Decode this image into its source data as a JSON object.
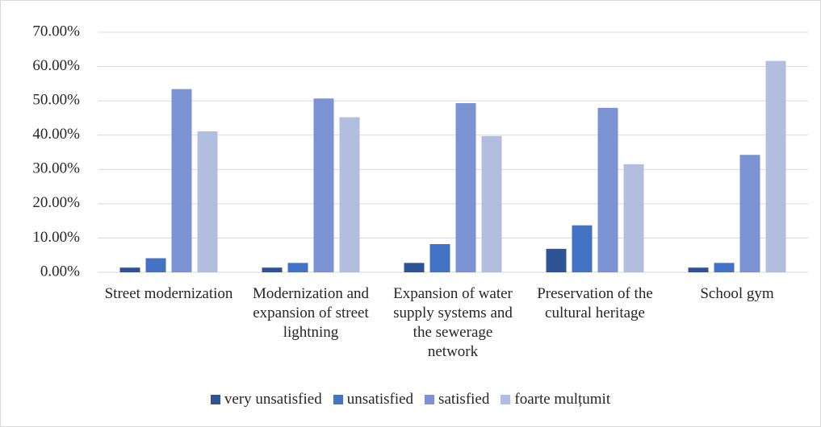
{
  "chart_data": {
    "type": "bar",
    "categories": [
      "Street modernization",
      "Modernization and expansion of street lightning",
      "Expansion of water supply systems and the sewerage network",
      "Preservation of the cultural heritage",
      "School gym"
    ],
    "series": [
      {
        "name": "very unsatisfied",
        "color": "#2f5496",
        "values": [
          1.37,
          1.37,
          2.74,
          6.85,
          1.37
        ]
      },
      {
        "name": "unsatisfied",
        "color": "#4472c4",
        "values": [
          4.11,
          2.74,
          8.22,
          13.7,
          2.74
        ]
      },
      {
        "name": "satisfied",
        "color": "#7b93d2",
        "values": [
          53.42,
          50.68,
          49.32,
          47.95,
          34.25
        ]
      },
      {
        "name": "foarte mulțumit",
        "color": "#b1bedf",
        "values": [
          41.1,
          45.21,
          39.73,
          31.51,
          61.64
        ]
      }
    ],
    "ylim": [
      0,
      70
    ],
    "yticks": [
      {
        "value": 0,
        "label": "0.00%"
      },
      {
        "value": 10,
        "label": "10.00%"
      },
      {
        "value": 20,
        "label": "20.00%"
      },
      {
        "value": 30,
        "label": "30.00%"
      },
      {
        "value": 40,
        "label": "40.00%"
      },
      {
        "value": 50,
        "label": "50.00%"
      },
      {
        "value": 60,
        "label": "60.00%"
      },
      {
        "value": 70,
        "label": "70.00%"
      }
    ],
    "grid": true,
    "legend": "bottom"
  }
}
